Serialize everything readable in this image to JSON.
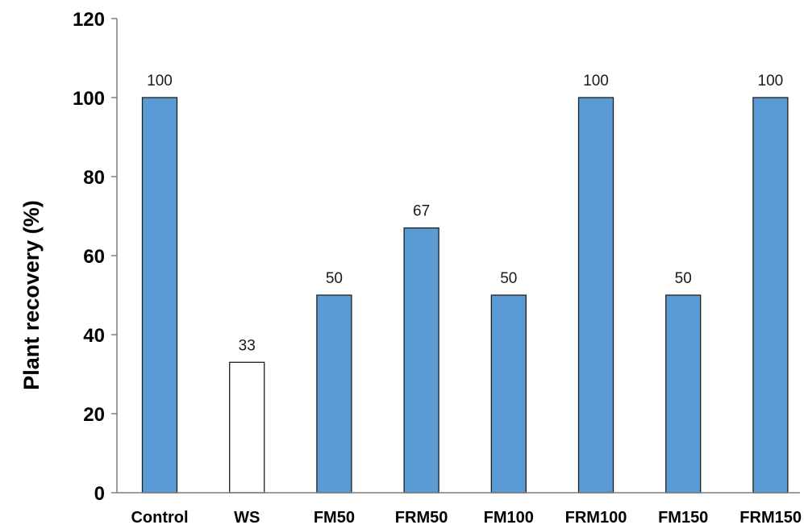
{
  "chart_data": {
    "type": "bar",
    "title": "",
    "xlabel": "",
    "ylabel": "Plant recovery (%)",
    "categories": [
      "Control",
      "WS",
      "FM50",
      "FRM50",
      "FM100",
      "FRM100",
      "FM150",
      "FRM150"
    ],
    "values": [
      100,
      33,
      50,
      67,
      50,
      100,
      50,
      100
    ],
    "data_labels": [
      "100",
      "33",
      "50",
      "67",
      "50",
      "100",
      "50",
      "100"
    ],
    "ylim": [
      0,
      120
    ],
    "yticks": [
      0,
      20,
      40,
      60,
      80,
      100,
      120
    ],
    "ytick_labels": [
      "0",
      "20",
      "40",
      "60",
      "80",
      "100",
      "120"
    ],
    "grid": false,
    "legend": "none",
    "colors": {
      "bar_fill": "#5b9bd5",
      "bar_fill_ws": "#ffffff",
      "bar_stroke": "#1f1f1f",
      "axis": "#7f7f7f"
    }
  }
}
